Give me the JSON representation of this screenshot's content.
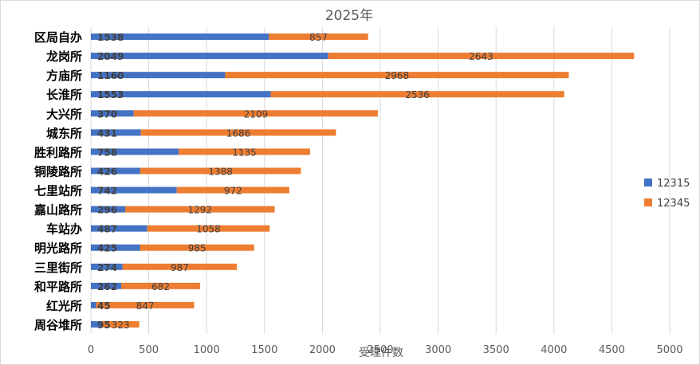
{
  "chart_data": {
    "type": "bar",
    "orientation": "horizontal",
    "stacked": true,
    "title": "2025年",
    "xlabel": "受理件数",
    "ylabel": "",
    "xlim": [
      0,
      5000
    ],
    "xticks": [
      0,
      500,
      1000,
      1500,
      2000,
      2500,
      3000,
      3500,
      4000,
      4500,
      5000
    ],
    "grid": true,
    "legend_position": "right",
    "categories": [
      "区局自办",
      "龙岗所",
      "方庙所",
      "长淮所",
      "大兴所",
      "城东所",
      "胜利路所",
      "铜陵路所",
      "七里站所",
      "嘉山路所",
      "车站办",
      "明光路所",
      "三里街所",
      "和平路所",
      "红光所",
      "周谷堆所"
    ],
    "series": [
      {
        "name": "12315",
        "color": "#4472C4",
        "values": [
          1538,
          2049,
          1160,
          1553,
          370,
          431,
          758,
          426,
          742,
          296,
          487,
          425,
          274,
          262,
          45,
          95
        ]
      },
      {
        "name": "12345",
        "color": "#ED7D31",
        "values": [
          857,
          2643,
          2968,
          2536,
          2109,
          1686,
          1135,
          1388,
          972,
          1292,
          1058,
          985,
          987,
          682,
          847,
          323
        ]
      }
    ]
  }
}
